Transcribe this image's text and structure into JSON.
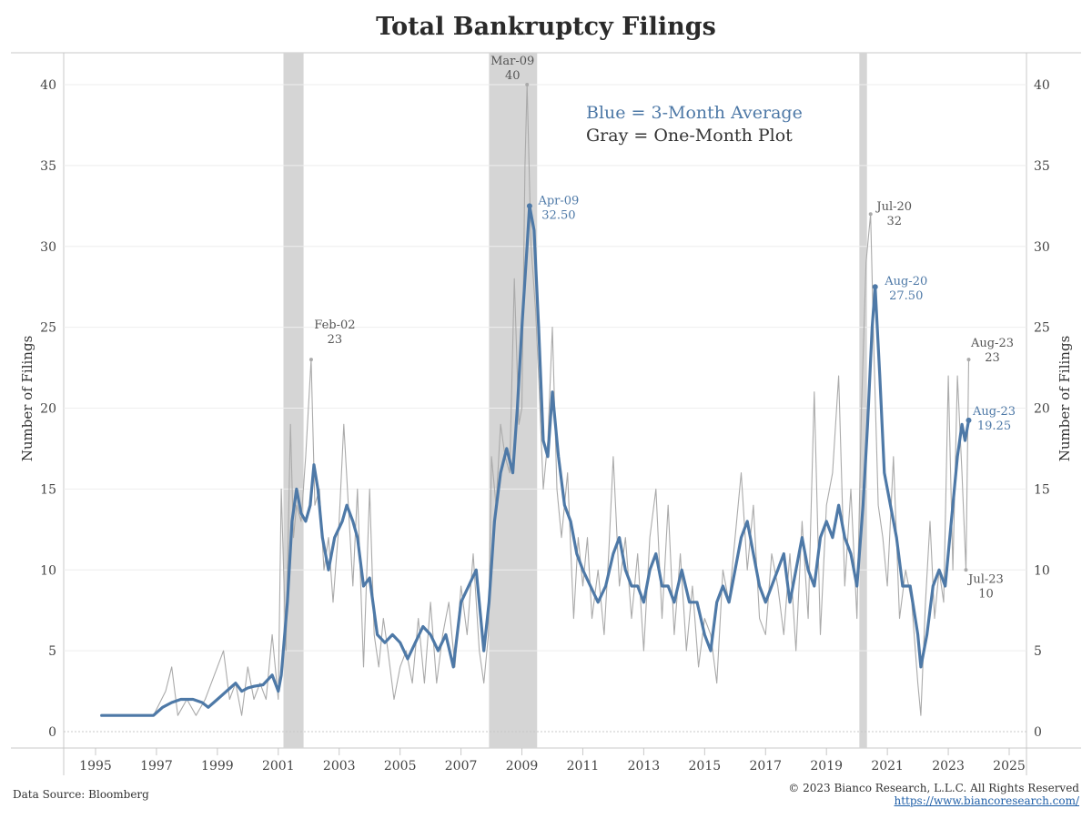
{
  "header": {
    "title": "Total Bankruptcy Filings"
  },
  "footer": {
    "source": "Data Source: Bloomberg",
    "copyright": "© 2023 Bianco Research, L.L.C. All Rights Reserved",
    "url": "https://www.biancoresearch.com/"
  },
  "legend": {
    "blue": "Blue = 3-Month Average",
    "gray": "Gray = One-Month Plot"
  },
  "colors": {
    "avg": "#4e79a7",
    "monthly": "#aaaaaa",
    "recession": "#d5d5d5"
  },
  "chart_data": {
    "type": "line",
    "title": "Total Bankruptcy Filings",
    "ylabel": "Number of Filings",
    "ylabel_right": "Number of Filings",
    "ylim": [
      0,
      42
    ],
    "xlim": [
      1994.5,
      2025.5
    ],
    "x_ticks": [
      "1995",
      "1997",
      "1999",
      "2001",
      "2003",
      "2005",
      "2007",
      "2009",
      "2011",
      "2013",
      "2015",
      "2017",
      "2019",
      "2021",
      "2023",
      "2025"
    ],
    "y_ticks": [
      "0",
      "5",
      "10",
      "15",
      "20",
      "25",
      "30",
      "35",
      "40"
    ],
    "recessions": [
      [
        2001.17,
        2001.83
      ],
      [
        2007.92,
        2009.5
      ],
      [
        2020.08,
        2020.33
      ]
    ],
    "series": [
      {
        "name": "3-Month Average",
        "color": "#4e79a7",
        "points": [
          [
            1995.2,
            1
          ],
          [
            1996.0,
            1
          ],
          [
            1996.5,
            1
          ],
          [
            1996.9,
            1
          ],
          [
            1997.2,
            1.5
          ],
          [
            1997.5,
            1.8
          ],
          [
            1997.8,
            2
          ],
          [
            1998.2,
            2
          ],
          [
            1998.5,
            1.8
          ],
          [
            1998.7,
            1.5
          ],
          [
            1999.0,
            2
          ],
          [
            1999.3,
            2.5
          ],
          [
            1999.6,
            3
          ],
          [
            1999.8,
            2.5
          ],
          [
            2000.0,
            2.7
          ],
          [
            2000.2,
            2.8
          ],
          [
            2000.5,
            2.9
          ],
          [
            2000.8,
            3.5
          ],
          [
            2001.0,
            2.5
          ],
          [
            2001.1,
            3.5
          ],
          [
            2001.3,
            8
          ],
          [
            2001.45,
            13
          ],
          [
            2001.6,
            15
          ],
          [
            2001.75,
            13.5
          ],
          [
            2001.9,
            13
          ],
          [
            2002.05,
            14
          ],
          [
            2002.17,
            16.5
          ],
          [
            2002.3,
            15
          ],
          [
            2002.45,
            12
          ],
          [
            2002.65,
            10
          ],
          [
            2002.85,
            12
          ],
          [
            2003.1,
            13
          ],
          [
            2003.25,
            14
          ],
          [
            2003.45,
            13
          ],
          [
            2003.6,
            12
          ],
          [
            2003.8,
            9
          ],
          [
            2004.0,
            9.5
          ],
          [
            2004.25,
            6
          ],
          [
            2004.5,
            5.5
          ],
          [
            2004.75,
            6
          ],
          [
            2005.0,
            5.5
          ],
          [
            2005.25,
            4.5
          ],
          [
            2005.5,
            5.5
          ],
          [
            2005.75,
            6.5
          ],
          [
            2006.0,
            6
          ],
          [
            2006.25,
            5
          ],
          [
            2006.5,
            6
          ],
          [
            2006.75,
            4
          ],
          [
            2007.0,
            8
          ],
          [
            2007.25,
            9
          ],
          [
            2007.5,
            10
          ],
          [
            2007.75,
            5
          ],
          [
            2007.92,
            8
          ],
          [
            2008.1,
            13
          ],
          [
            2008.3,
            16
          ],
          [
            2008.5,
            17.5
          ],
          [
            2008.7,
            16
          ],
          [
            2008.85,
            20
          ],
          [
            2009.0,
            25
          ],
          [
            2009.17,
            30
          ],
          [
            2009.25,
            32.5
          ],
          [
            2009.4,
            31
          ],
          [
            2009.55,
            25
          ],
          [
            2009.7,
            18
          ],
          [
            2009.85,
            17
          ],
          [
            2010.0,
            21
          ],
          [
            2010.2,
            17
          ],
          [
            2010.4,
            14
          ],
          [
            2010.6,
            13
          ],
          [
            2010.8,
            11
          ],
          [
            2011.0,
            10
          ],
          [
            2011.25,
            9
          ],
          [
            2011.5,
            8
          ],
          [
            2011.75,
            9
          ],
          [
            2012.0,
            11
          ],
          [
            2012.2,
            12
          ],
          [
            2012.4,
            10
          ],
          [
            2012.6,
            9
          ],
          [
            2012.8,
            9
          ],
          [
            2013.0,
            8
          ],
          [
            2013.2,
            10
          ],
          [
            2013.4,
            11
          ],
          [
            2013.6,
            9
          ],
          [
            2013.8,
            9
          ],
          [
            2014.0,
            8
          ],
          [
            2014.25,
            10
          ],
          [
            2014.5,
            8
          ],
          [
            2014.75,
            8
          ],
          [
            2015.0,
            6
          ],
          [
            2015.2,
            5
          ],
          [
            2015.4,
            8
          ],
          [
            2015.6,
            9
          ],
          [
            2015.8,
            8
          ],
          [
            2016.0,
            10
          ],
          [
            2016.2,
            12
          ],
          [
            2016.4,
            13
          ],
          [
            2016.6,
            11
          ],
          [
            2016.8,
            9
          ],
          [
            2017.0,
            8
          ],
          [
            2017.2,
            9
          ],
          [
            2017.4,
            10
          ],
          [
            2017.6,
            11
          ],
          [
            2017.8,
            8
          ],
          [
            2018.0,
            10
          ],
          [
            2018.2,
            12
          ],
          [
            2018.4,
            10
          ],
          [
            2018.6,
            9
          ],
          [
            2018.8,
            12
          ],
          [
            2019.0,
            13
          ],
          [
            2019.2,
            12
          ],
          [
            2019.4,
            14
          ],
          [
            2019.6,
            12
          ],
          [
            2019.8,
            11
          ],
          [
            2020.0,
            9
          ],
          [
            2020.2,
            14
          ],
          [
            2020.35,
            19
          ],
          [
            2020.5,
            25
          ],
          [
            2020.6,
            27.5
          ],
          [
            2020.75,
            22
          ],
          [
            2020.9,
            16
          ],
          [
            2021.1,
            14
          ],
          [
            2021.3,
            12
          ],
          [
            2021.5,
            9
          ],
          [
            2021.75,
            9
          ],
          [
            2022.0,
            6
          ],
          [
            2022.1,
            4
          ],
          [
            2022.3,
            6
          ],
          [
            2022.5,
            9
          ],
          [
            2022.7,
            10
          ],
          [
            2022.9,
            9
          ],
          [
            2023.1,
            13
          ],
          [
            2023.3,
            17
          ],
          [
            2023.45,
            19
          ],
          [
            2023.55,
            18
          ],
          [
            2023.67,
            19.25
          ]
        ]
      },
      {
        "name": "One-Month Plot",
        "color": "#aaaaaa",
        "points": [
          [
            1995.2,
            1
          ],
          [
            1996.5,
            1
          ],
          [
            1996.9,
            1
          ],
          [
            1997.3,
            2.5
          ],
          [
            1997.5,
            4
          ],
          [
            1997.7,
            1
          ],
          [
            1998.0,
            2
          ],
          [
            1998.3,
            1
          ],
          [
            1998.6,
            2
          ],
          [
            1998.8,
            3
          ],
          [
            1999.0,
            4
          ],
          [
            1999.2,
            5
          ],
          [
            1999.4,
            2
          ],
          [
            1999.6,
            3
          ],
          [
            1999.8,
            1
          ],
          [
            2000.0,
            4
          ],
          [
            2000.2,
            2
          ],
          [
            2000.4,
            3
          ],
          [
            2000.6,
            2
          ],
          [
            2000.8,
            6
          ],
          [
            2001.0,
            2
          ],
          [
            2001.1,
            15
          ],
          [
            2001.25,
            5
          ],
          [
            2001.4,
            19
          ],
          [
            2001.5,
            12
          ],
          [
            2001.6,
            14
          ],
          [
            2001.75,
            13
          ],
          [
            2001.9,
            17
          ],
          [
            2002.08,
            23
          ],
          [
            2002.2,
            14
          ],
          [
            2002.35,
            15
          ],
          [
            2002.5,
            10
          ],
          [
            2002.65,
            12
          ],
          [
            2002.8,
            8
          ],
          [
            2003.0,
            13
          ],
          [
            2003.15,
            19
          ],
          [
            2003.3,
            14
          ],
          [
            2003.45,
            9
          ],
          [
            2003.6,
            15
          ],
          [
            2003.8,
            4
          ],
          [
            2004.0,
            15
          ],
          [
            2004.15,
            6
          ],
          [
            2004.3,
            4
          ],
          [
            2004.45,
            7
          ],
          [
            2004.6,
            5
          ],
          [
            2004.8,
            2
          ],
          [
            2005.0,
            4
          ],
          [
            2005.2,
            5
          ],
          [
            2005.4,
            3
          ],
          [
            2005.6,
            7
          ],
          [
            2005.8,
            3
          ],
          [
            2006.0,
            8
          ],
          [
            2006.2,
            3
          ],
          [
            2006.4,
            6
          ],
          [
            2006.6,
            8
          ],
          [
            2006.8,
            4
          ],
          [
            2007.0,
            9
          ],
          [
            2007.2,
            6
          ],
          [
            2007.4,
            11
          ],
          [
            2007.6,
            5
          ],
          [
            2007.75,
            3
          ],
          [
            2007.9,
            6
          ],
          [
            2008.0,
            17
          ],
          [
            2008.15,
            14
          ],
          [
            2008.3,
            19
          ],
          [
            2008.45,
            17
          ],
          [
            2008.6,
            16
          ],
          [
            2008.75,
            28
          ],
          [
            2008.9,
            19
          ],
          [
            2009.0,
            20
          ],
          [
            2009.1,
            35
          ],
          [
            2009.17,
            40
          ],
          [
            2009.3,
            30
          ],
          [
            2009.45,
            26
          ],
          [
            2009.55,
            22
          ],
          [
            2009.7,
            15
          ],
          [
            2009.85,
            18
          ],
          [
            2010.0,
            25
          ],
          [
            2010.15,
            15
          ],
          [
            2010.3,
            12
          ],
          [
            2010.5,
            16
          ],
          [
            2010.7,
            7
          ],
          [
            2010.85,
            12
          ],
          [
            2011.0,
            9
          ],
          [
            2011.15,
            12
          ],
          [
            2011.3,
            7
          ],
          [
            2011.5,
            10
          ],
          [
            2011.7,
            6
          ],
          [
            2011.85,
            11
          ],
          [
            2012.0,
            17
          ],
          [
            2012.2,
            9
          ],
          [
            2012.4,
            12
          ],
          [
            2012.6,
            7
          ],
          [
            2012.8,
            11
          ],
          [
            2013.0,
            5
          ],
          [
            2013.2,
            12
          ],
          [
            2013.4,
            15
          ],
          [
            2013.6,
            7
          ],
          [
            2013.8,
            14
          ],
          [
            2014.0,
            6
          ],
          [
            2014.2,
            11
          ],
          [
            2014.4,
            5
          ],
          [
            2014.6,
            9
          ],
          [
            2014.8,
            4
          ],
          [
            2015.0,
            7
          ],
          [
            2015.2,
            6
          ],
          [
            2015.4,
            3
          ],
          [
            2015.6,
            10
          ],
          [
            2015.8,
            8
          ],
          [
            2016.0,
            12
          ],
          [
            2016.2,
            16
          ],
          [
            2016.4,
            10
          ],
          [
            2016.6,
            14
          ],
          [
            2016.8,
            7
          ],
          [
            2017.0,
            6
          ],
          [
            2017.2,
            11
          ],
          [
            2017.4,
            9
          ],
          [
            2017.6,
            6
          ],
          [
            2017.8,
            11
          ],
          [
            2018.0,
            5
          ],
          [
            2018.2,
            13
          ],
          [
            2018.4,
            7
          ],
          [
            2018.6,
            21
          ],
          [
            2018.8,
            6
          ],
          [
            2019.0,
            14
          ],
          [
            2019.2,
            16
          ],
          [
            2019.4,
            22
          ],
          [
            2019.6,
            9
          ],
          [
            2019.8,
            15
          ],
          [
            2020.0,
            7
          ],
          [
            2020.15,
            20
          ],
          [
            2020.3,
            29
          ],
          [
            2020.45,
            32
          ],
          [
            2020.55,
            24
          ],
          [
            2020.7,
            14
          ],
          [
            2020.85,
            12
          ],
          [
            2021.0,
            9
          ],
          [
            2021.2,
            17
          ],
          [
            2021.4,
            7
          ],
          [
            2021.6,
            10
          ],
          [
            2021.8,
            8
          ],
          [
            2022.0,
            3
          ],
          [
            2022.1,
            1
          ],
          [
            2022.25,
            8
          ],
          [
            2022.4,
            13
          ],
          [
            2022.55,
            7
          ],
          [
            2022.7,
            10
          ],
          [
            2022.85,
            8
          ],
          [
            2023.0,
            22
          ],
          [
            2023.15,
            10
          ],
          [
            2023.3,
            22
          ],
          [
            2023.45,
            16
          ],
          [
            2023.58,
            10
          ],
          [
            2023.67,
            23
          ]
        ]
      }
    ],
    "annotations": [
      {
        "series": "One-Month Plot",
        "x": 2002.08,
        "y": 23,
        "label": "Feb-02",
        "value": "23"
      },
      {
        "series": "One-Month Plot",
        "x": 2009.17,
        "y": 40,
        "label": "Mar-09",
        "value": "40"
      },
      {
        "series": "3-Month Average",
        "x": 2009.25,
        "y": 32.5,
        "label": "Apr-09",
        "value": "32.50"
      },
      {
        "series": "One-Month Plot",
        "x": 2020.45,
        "y": 32,
        "label": "Jul-20",
        "value": "32"
      },
      {
        "series": "3-Month Average",
        "x": 2020.6,
        "y": 27.5,
        "label": "Aug-20",
        "value": "27.50"
      },
      {
        "series": "One-Month Plot",
        "x": 2023.67,
        "y": 23,
        "label": "Aug-23",
        "value": "23"
      },
      {
        "series": "3-Month Average",
        "x": 2023.67,
        "y": 19.25,
        "label": "Aug-23",
        "value": "19.25"
      },
      {
        "series": "One-Month Plot",
        "x": 2023.58,
        "y": 10,
        "label": "Jul-23",
        "value": "10"
      }
    ]
  }
}
